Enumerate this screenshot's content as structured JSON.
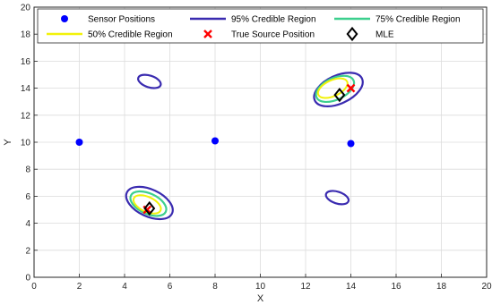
{
  "chart_data": {
    "type": "scatter",
    "xlabel": "X",
    "ylabel": "Y",
    "xlim": [
      0,
      20
    ],
    "ylim": [
      0,
      20
    ],
    "xticks": [
      0,
      2,
      4,
      6,
      8,
      10,
      12,
      14,
      16,
      18,
      20
    ],
    "yticks": [
      0,
      2,
      4,
      6,
      8,
      10,
      12,
      14,
      16,
      18,
      20
    ],
    "grid": true,
    "legend_position": "top",
    "colors": {
      "sensor": "#0000ff",
      "region95": "#3a2bb0",
      "region75": "#3ccf8e",
      "region50": "#f2f20a",
      "true_source": "#ff0000",
      "mle": "#000000"
    },
    "legend": [
      {
        "label": "Sensor Positions",
        "kind": "sensor"
      },
      {
        "label": "95% Credible Region",
        "kind": "region95"
      },
      {
        "label": "75% Credible Region",
        "kind": "region75"
      },
      {
        "label": "50% Credible Region",
        "kind": "region50"
      },
      {
        "label": "True Source Position",
        "kind": "true_source"
      },
      {
        "label": "MLE",
        "kind": "mle"
      }
    ],
    "sensors": [
      {
        "x": 2,
        "y": 10
      },
      {
        "x": 8,
        "y": 10.1
      },
      {
        "x": 14,
        "y": 9.9
      }
    ],
    "true_sources": [
      {
        "x": 5,
        "y": 5
      },
      {
        "x": 14,
        "y": 14
      }
    ],
    "mle": [
      {
        "x": 5.1,
        "y": 5.1
      },
      {
        "x": 13.5,
        "y": 13.5
      }
    ],
    "credible_regions": [
      {
        "level": "95%",
        "cx": 5.1,
        "cy": 5.5,
        "rx": 1.1,
        "ry": 0.6,
        "angle": 25
      },
      {
        "level": "75%",
        "cx": 5.05,
        "cy": 5.45,
        "rx": 0.85,
        "ry": 0.45,
        "angle": 25
      },
      {
        "level": "50%",
        "cx": 5.0,
        "cy": 5.4,
        "rx": 0.65,
        "ry": 0.33,
        "angle": 25
      },
      {
        "level": "95%",
        "cx": 13.45,
        "cy": 13.9,
        "rx": 1.15,
        "ry": 0.62,
        "angle": -25
      },
      {
        "level": "75%",
        "cx": 13.3,
        "cy": 13.95,
        "rx": 0.9,
        "ry": 0.48,
        "angle": -25
      },
      {
        "level": "50%",
        "cx": 13.2,
        "cy": 14.0,
        "rx": 0.7,
        "ry": 0.35,
        "angle": -25
      },
      {
        "level": "95%",
        "cx": 5.1,
        "cy": 14.5,
        "rx": 0.52,
        "ry": 0.26,
        "angle": 18
      },
      {
        "level": "95%",
        "cx": 13.4,
        "cy": 5.9,
        "rx": 0.52,
        "ry": 0.26,
        "angle": 18
      }
    ]
  }
}
